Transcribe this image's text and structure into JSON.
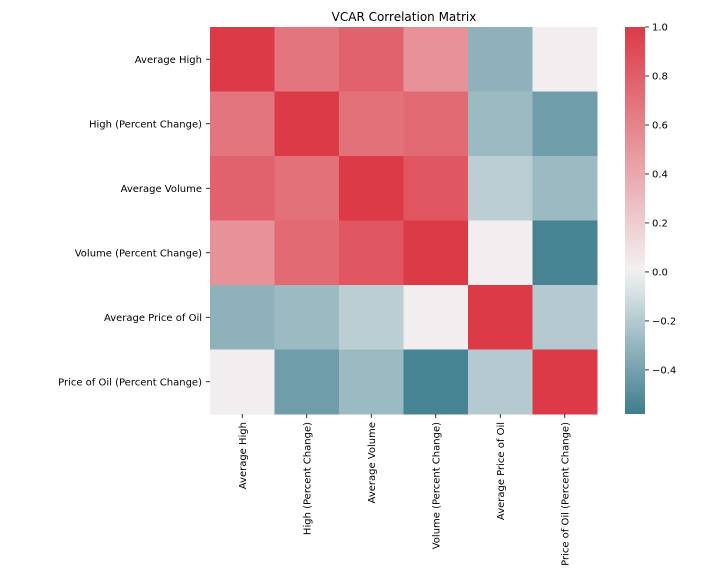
{
  "chart_data": {
    "type": "heatmap",
    "title": "VCAR Correlation Matrix",
    "xlabel": "",
    "ylabel": "",
    "row_labels": [
      "Average High",
      "High (Percent Change)",
      "Average Volume",
      "Volume (Percent Change)",
      "Average Price of Oil",
      "Price of Oil (Percent Change)"
    ],
    "col_labels": [
      "Average High",
      "High (Percent Change)",
      "Average Volume",
      "Volume (Percent Change)",
      "Average Price of Oil",
      "Price of Oil (Percent Change)"
    ],
    "values": [
      [
        1.0,
        0.68,
        0.78,
        0.52,
        -0.32,
        0.02
      ],
      [
        0.68,
        1.0,
        0.7,
        0.74,
        -0.28,
        -0.42
      ],
      [
        0.78,
        0.7,
        1.0,
        0.84,
        -0.18,
        -0.28
      ],
      [
        0.52,
        0.74,
        0.84,
        1.0,
        0.02,
        -0.55
      ],
      [
        -0.32,
        -0.28,
        -0.18,
        0.02,
        1.0,
        -0.2
      ],
      [
        0.02,
        -0.42,
        -0.28,
        -0.55,
        -0.2,
        1.0
      ]
    ],
    "colorbar": {
      "vmin": -0.58,
      "vmax": 1.0,
      "ticks": [
        1.0,
        0.8,
        0.6,
        0.4,
        0.2,
        0.0,
        -0.2,
        -0.4
      ],
      "tick_labels": [
        "1.0",
        "0.8",
        "0.6",
        "0.4",
        "0.2",
        "0.0",
        "−0.2",
        "−0.4"
      ],
      "low_color": "#3d7d8e",
      "mid_color": "#f2f2f2",
      "high_color": "#dc3a47"
    },
    "grid": false
  }
}
